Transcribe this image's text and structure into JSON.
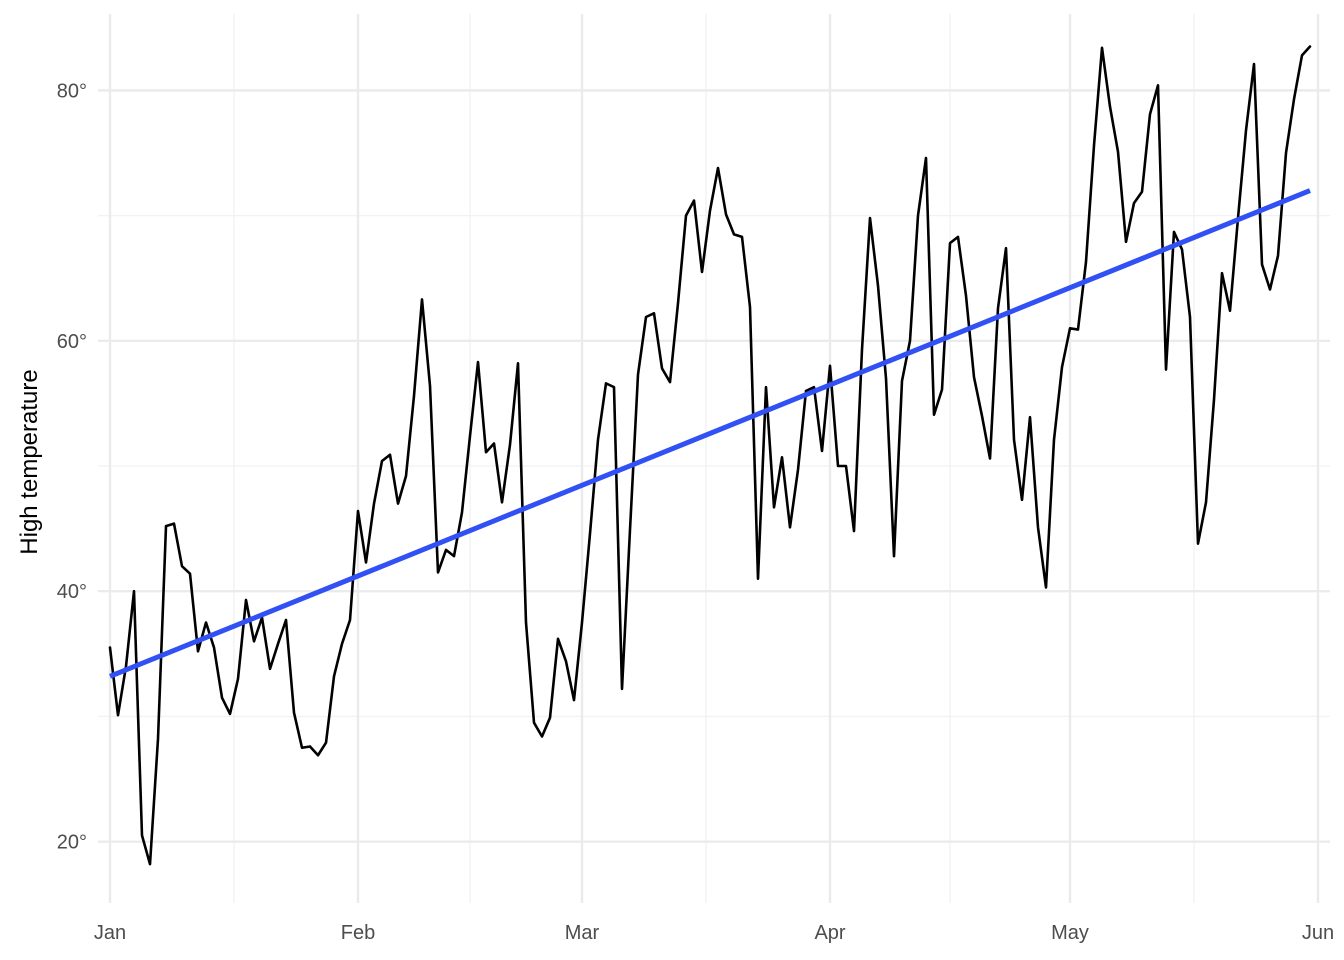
{
  "chart_data": {
    "type": "line",
    "title": "",
    "xlabel": "",
    "ylabel": "High temperature",
    "grid": true,
    "legend": "none",
    "x_ticks": [
      "Jan",
      "Feb",
      "Mar",
      "Apr",
      "May",
      "Jun"
    ],
    "y_ticks": [
      "20°",
      "40°",
      "60°",
      "80°"
    ],
    "y_minor_ticks": [
      30,
      50,
      70
    ],
    "xlim": [
      "2014-01-01",
      "2014-06-01"
    ],
    "ylim": [
      15.1,
      86.1
    ],
    "series": [
      {
        "kind": "line",
        "color": "#000000",
        "x": [
          "2014-01-01",
          "2014-01-02",
          "2014-01-03",
          "2014-01-04",
          "2014-01-05",
          "2014-01-06",
          "2014-01-07",
          "2014-01-08",
          "2014-01-09",
          "2014-01-10",
          "2014-01-11",
          "2014-01-12",
          "2014-01-13",
          "2014-01-14",
          "2014-01-15",
          "2014-01-16",
          "2014-01-17",
          "2014-01-18",
          "2014-01-19",
          "2014-01-20",
          "2014-01-21",
          "2014-01-22",
          "2014-01-23",
          "2014-01-24",
          "2014-01-25",
          "2014-01-26",
          "2014-01-27",
          "2014-01-28",
          "2014-01-29",
          "2014-01-30",
          "2014-01-31",
          "2014-02-01",
          "2014-02-02",
          "2014-02-03",
          "2014-02-04",
          "2014-02-05",
          "2014-02-06",
          "2014-02-07",
          "2014-02-08",
          "2014-02-09",
          "2014-02-10",
          "2014-02-11",
          "2014-02-12",
          "2014-02-13",
          "2014-02-14",
          "2014-02-15",
          "2014-02-16",
          "2014-02-17",
          "2014-02-18",
          "2014-02-19",
          "2014-02-20",
          "2014-02-21",
          "2014-02-22",
          "2014-02-23",
          "2014-02-24",
          "2014-02-25",
          "2014-02-26",
          "2014-02-27",
          "2014-02-28",
          "2014-03-01",
          "2014-03-02",
          "2014-03-03",
          "2014-03-04",
          "2014-03-05",
          "2014-03-06",
          "2014-03-07",
          "2014-03-08",
          "2014-03-09",
          "2014-03-10",
          "2014-03-11",
          "2014-03-12",
          "2014-03-13",
          "2014-03-14",
          "2014-03-15",
          "2014-03-16",
          "2014-03-17",
          "2014-03-18",
          "2014-03-19",
          "2014-03-20",
          "2014-03-21",
          "2014-03-22",
          "2014-03-23",
          "2014-03-24",
          "2014-03-25",
          "2014-03-26",
          "2014-03-27",
          "2014-03-28",
          "2014-03-29",
          "2014-03-30",
          "2014-03-31",
          "2014-04-01",
          "2014-04-02",
          "2014-04-03",
          "2014-04-04",
          "2014-04-05",
          "2014-04-06",
          "2014-04-07",
          "2014-04-08",
          "2014-04-09",
          "2014-04-10",
          "2014-04-11",
          "2014-04-12",
          "2014-04-13",
          "2014-04-14",
          "2014-04-15",
          "2014-04-16",
          "2014-04-17",
          "2014-04-18",
          "2014-04-19",
          "2014-04-20",
          "2014-04-21",
          "2014-04-22",
          "2014-04-23",
          "2014-04-24",
          "2014-04-25",
          "2014-04-26",
          "2014-04-27",
          "2014-04-28",
          "2014-04-29",
          "2014-04-30",
          "2014-05-01",
          "2014-05-02",
          "2014-05-03",
          "2014-05-04",
          "2014-05-05",
          "2014-05-06",
          "2014-05-07",
          "2014-05-08",
          "2014-05-09",
          "2014-05-10",
          "2014-05-11",
          "2014-05-12",
          "2014-05-13",
          "2014-05-14",
          "2014-05-15",
          "2014-05-16",
          "2014-05-17",
          "2014-05-18",
          "2014-05-19",
          "2014-05-20",
          "2014-05-21",
          "2014-05-22",
          "2014-05-23",
          "2014-05-24",
          "2014-05-25",
          "2014-05-26",
          "2014-05-27",
          "2014-05-28",
          "2014-05-29",
          "2014-05-30",
          "2014-05-31"
        ],
        "y": [
          35.5,
          30.1,
          34.0,
          40.0,
          20.5,
          18.2,
          28.2,
          45.2,
          45.4,
          42.0,
          41.4,
          35.2,
          37.5,
          35.5,
          31.5,
          30.2,
          33.0,
          39.3,
          36.0,
          37.9,
          33.8,
          35.8,
          37.7,
          30.3,
          27.5,
          27.6,
          26.9,
          27.9,
          33.2,
          35.8,
          37.7,
          46.4,
          42.3,
          47.0,
          50.4,
          50.9,
          47.0,
          49.2,
          55.6,
          63.3,
          56.4,
          41.5,
          43.3,
          42.8,
          46.3,
          52.4,
          58.3,
          51.1,
          51.8,
          47.1,
          51.7,
          58.2,
          37.5,
          29.5,
          28.4,
          29.9,
          36.2,
          34.4,
          31.3,
          37.5,
          44.6,
          52.1,
          56.6,
          56.3,
          32.2,
          44.9,
          57.3,
          61.9,
          62.2,
          57.8,
          56.7,
          63.0,
          70.0,
          71.2,
          65.5,
          70.4,
          73.8,
          70.1,
          68.5,
          68.3,
          62.7,
          41.0,
          56.3,
          46.7,
          50.7,
          45.1,
          49.7,
          56.0,
          56.3,
          51.2,
          58.0,
          50.0,
          50.0,
          44.8,
          59.3,
          69.8,
          64.4,
          57.0,
          42.8,
          56.8,
          60.0,
          70.0,
          74.6,
          54.1,
          56.1,
          67.8,
          68.3,
          63.6,
          57.1,
          54.0,
          50.6,
          62.6,
          67.4,
          52.1,
          47.3,
          53.9,
          45.1,
          40.3,
          52.1,
          57.9,
          61.0,
          60.9,
          66.3,
          75.6,
          83.4,
          78.7,
          75.1,
          67.9,
          71.0,
          71.9,
          78.1,
          80.4,
          57.7,
          68.7,
          67.3,
          61.9,
          43.8,
          47.1,
          55.3,
          65.4,
          62.4,
          69.8,
          76.8,
          82.1,
          66.1,
          64.1,
          66.8,
          75.0,
          79.3,
          82.8,
          83.5
        ]
      },
      {
        "kind": "smooth",
        "method": "linear fit",
        "color": "#3251f5",
        "x": [
          "2014-01-01",
          "2014-05-31"
        ],
        "y": [
          33.2,
          72.0
        ]
      }
    ]
  }
}
